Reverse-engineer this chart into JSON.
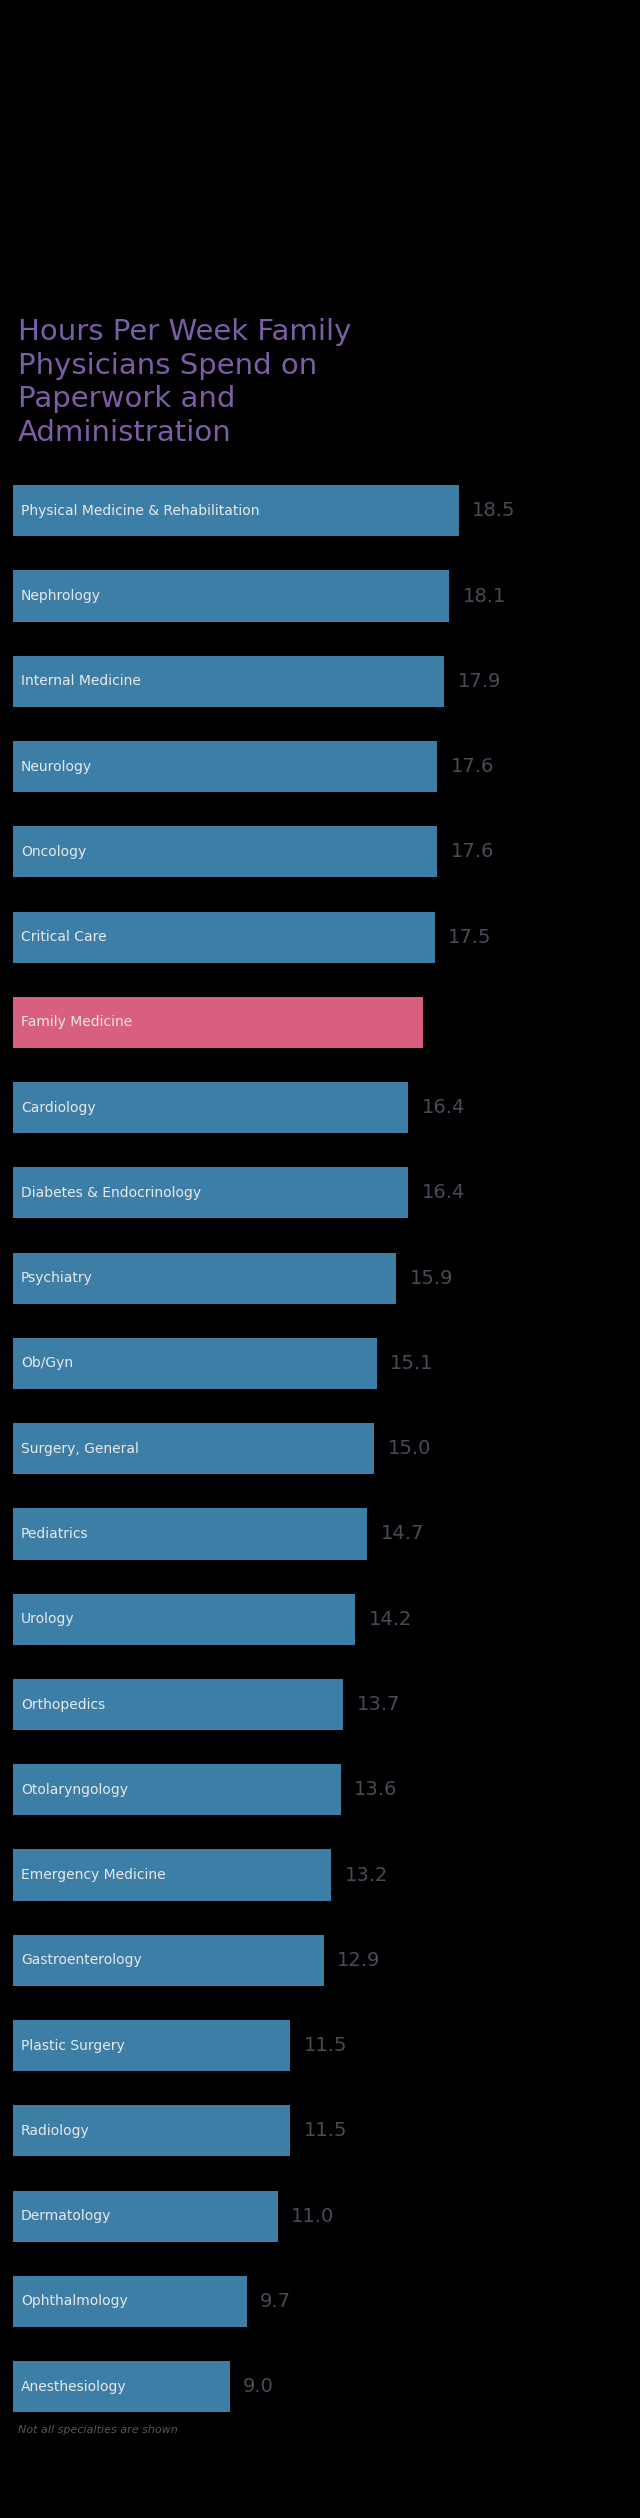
{
  "title": "Hours Per Week Family\nPhysicians Spend on\nPaperwork and\nAdministration",
  "title_color": "#7b5ea7",
  "bg_color": "#000000",
  "bar_color": "#3d7ea6",
  "highlight_color": "#d95f7f",
  "label_color": "#3a3a3a",
  "value_color": "#4a4a5a",
  "footnote": "Not all specialties are shown",
  "footnote_color": "#555566",
  "categories": [
    "Physical Medicine & Rehabilitation",
    "Nephrology",
    "Internal Medicine",
    "Neurology",
    "Oncology",
    "Critical Care",
    "Family Medicine",
    "Cardiology",
    "Diabetes & Endocrinology",
    "Psychiatry",
    "Ob/Gyn",
    "Surgery, General",
    "Pediatrics",
    "Urology",
    "Orthopedics",
    "Otolaryngology",
    "Emergency Medicine",
    "Gastroenterology",
    "Plastic Surgery",
    "Radiology",
    "Dermatology",
    "Ophthalmology",
    "Anesthesiology"
  ],
  "values": [
    18.5,
    18.1,
    17.9,
    17.6,
    17.6,
    17.5,
    17.0,
    16.4,
    16.4,
    15.9,
    15.1,
    15.0,
    14.7,
    14.2,
    13.7,
    13.6,
    13.2,
    12.9,
    11.5,
    11.5,
    11.0,
    9.7,
    9.0
  ],
  "highlight_index": 6,
  "max_value": 19.5,
  "title_fontsize": 21,
  "label_fontsize": 10,
  "value_fontsize": 14,
  "footnote_fontsize": 8
}
